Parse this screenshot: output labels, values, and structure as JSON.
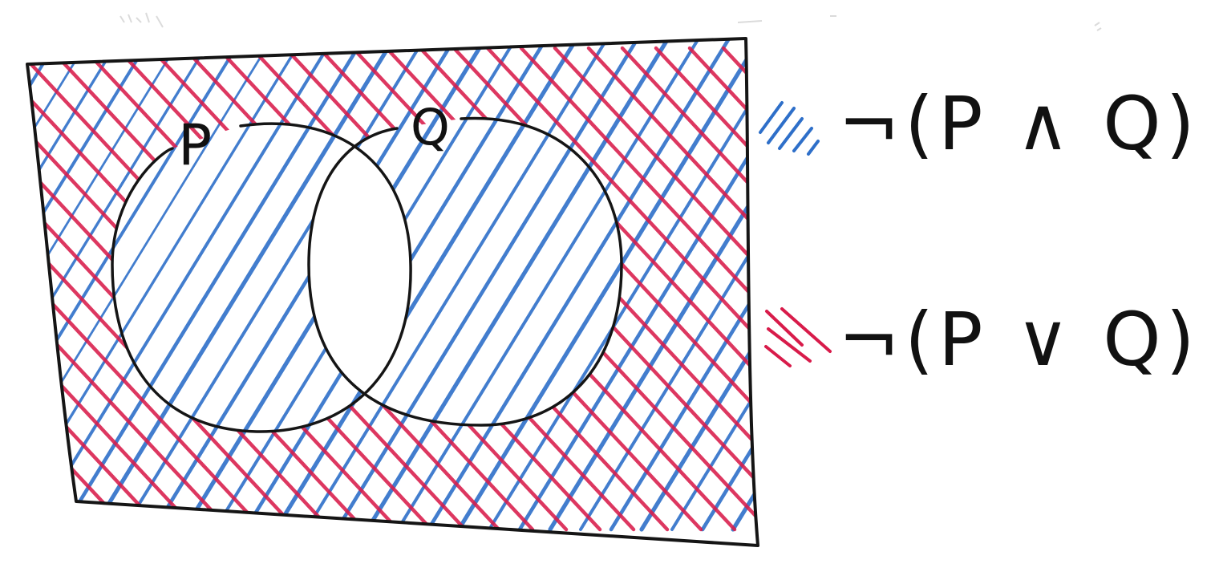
{
  "diagram": {
    "type": "venn-diagram",
    "sets": [
      {
        "id": "P",
        "label": "P"
      },
      {
        "id": "Q",
        "label": "Q"
      }
    ],
    "legend": [
      {
        "id": "blue",
        "formula": "¬(P ∧ Q)",
        "hatch_color": "#2e6fc9",
        "shades": "everything except P∩Q"
      },
      {
        "id": "red",
        "formula": "¬(P ∨ Q)",
        "hatch_color": "#d81b4a",
        "shades": "outside P and Q"
      }
    ]
  }
}
